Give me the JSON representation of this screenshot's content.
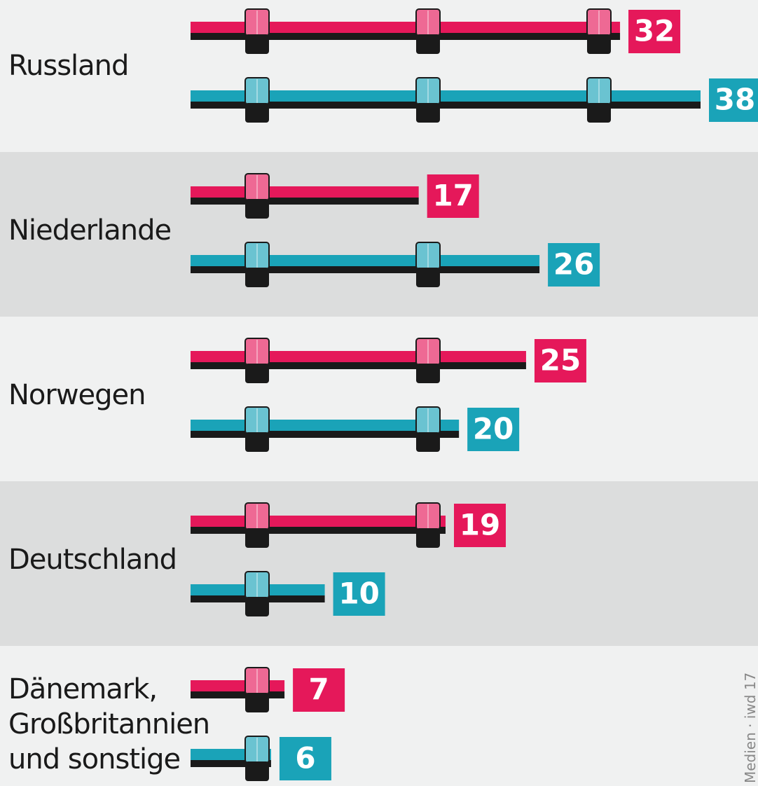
{
  "chart_data": {
    "type": "bar",
    "categories": [
      "Russland",
      "Niederlande",
      "Norwegen",
      "Deutschland",
      "Dänemark, Großbritannien und sonstige"
    ],
    "series": [
      {
        "color": "#e5185a",
        "values": [
          32,
          17,
          25,
          19,
          7
        ]
      },
      {
        "color": "#1aa3b8",
        "values": [
          38,
          26,
          20,
          10,
          6
        ]
      }
    ],
    "xlim": [
      0,
      38
    ],
    "source": "Medien · iwd 17"
  }
}
